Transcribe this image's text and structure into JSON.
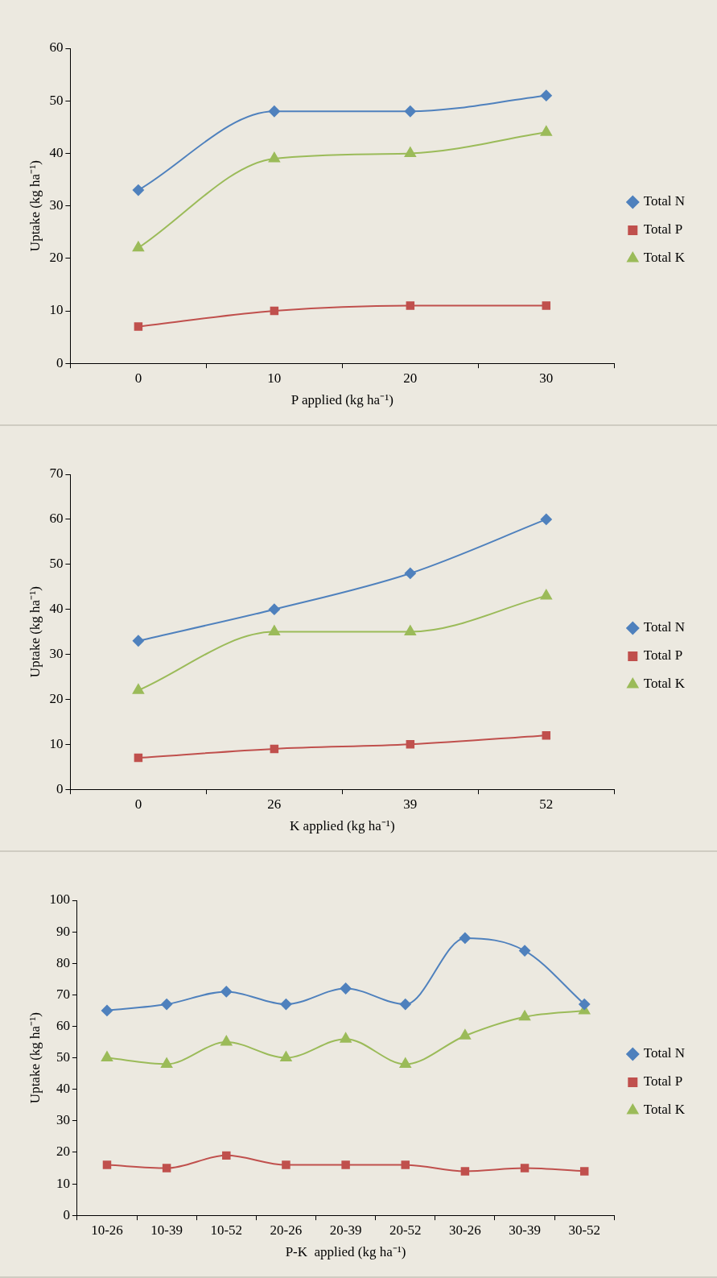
{
  "chart_data": [
    {
      "type": "line",
      "xlabel": "P applied (kg ha⁻¹)",
      "ylabel": "Uptake (kg ha⁻¹)",
      "categories": [
        "0",
        "10",
        "20",
        "30"
      ],
      "ylim": [
        0,
        60
      ],
      "yticks": [
        0,
        10,
        20,
        30,
        40,
        50,
        60
      ],
      "grid": false,
      "legend": "right",
      "series": [
        {
          "name": "Total N",
          "color": "#4f81bd",
          "marker": "diamond",
          "values": [
            33,
            48,
            48,
            51
          ]
        },
        {
          "name": "Total P",
          "color": "#c0504d",
          "marker": "square",
          "values": [
            7,
            10,
            11,
            11
          ]
        },
        {
          "name": "Total K",
          "color": "#9bbb59",
          "marker": "triangle",
          "values": [
            22,
            39,
            40,
            44
          ]
        }
      ]
    },
    {
      "type": "line",
      "xlabel": "K applied (kg ha⁻¹)",
      "ylabel": "Uptake (kg ha⁻¹)",
      "categories": [
        "0",
        "26",
        "39",
        "52"
      ],
      "ylim": [
        0,
        70
      ],
      "yticks": [
        0,
        10,
        20,
        30,
        40,
        50,
        60,
        70
      ],
      "grid": false,
      "legend": "right",
      "series": [
        {
          "name": "Total N",
          "color": "#4f81bd",
          "marker": "diamond",
          "values": [
            33,
            40,
            48,
            60
          ]
        },
        {
          "name": "Total P",
          "color": "#c0504d",
          "marker": "square",
          "values": [
            7,
            9,
            10,
            12
          ]
        },
        {
          "name": "Total K",
          "color": "#9bbb59",
          "marker": "triangle",
          "values": [
            22,
            35,
            35,
            43
          ]
        }
      ]
    },
    {
      "type": "line",
      "xlabel": "P-K  applied (kg ha⁻¹)",
      "ylabel": "Uptake (kg ha⁻¹)",
      "categories": [
        "10-26",
        "10-39",
        "10-52",
        "20-26",
        "20-39",
        "20-52",
        "30-26",
        "30-39",
        "30-52"
      ],
      "ylim": [
        0,
        100
      ],
      "yticks": [
        0,
        10,
        20,
        30,
        40,
        50,
        60,
        70,
        80,
        90,
        100
      ],
      "grid": false,
      "legend": "right",
      "series": [
        {
          "name": "Total N",
          "color": "#4f81bd",
          "marker": "diamond",
          "values": [
            65,
            67,
            71,
            67,
            72,
            67,
            88,
            84,
            67
          ]
        },
        {
          "name": "Total P",
          "color": "#c0504d",
          "marker": "square",
          "values": [
            16,
            15,
            19,
            16,
            16,
            16,
            14,
            15,
            14
          ]
        },
        {
          "name": "Total K",
          "color": "#9bbb59",
          "marker": "triangle",
          "values": [
            50,
            48,
            55,
            50,
            56,
            48,
            57,
            63,
            65
          ]
        }
      ]
    }
  ]
}
